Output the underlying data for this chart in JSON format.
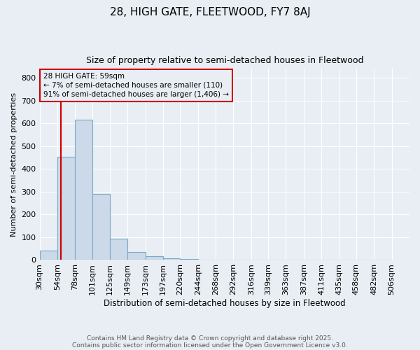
{
  "title": "28, HIGH GATE, FLEETWOOD, FY7 8AJ",
  "subtitle": "Size of property relative to semi-detached houses in Fleetwood",
  "xlabel": "Distribution of semi-detached houses by size in Fleetwood",
  "ylabel": "Number of semi-detached properties",
  "footnote1": "Contains HM Land Registry data © Crown copyright and database right 2025.",
  "footnote2": "Contains public sector information licensed under the Open Government Licence v3.0.",
  "bin_labels": [
    "30sqm",
    "54sqm",
    "78sqm",
    "101sqm",
    "125sqm",
    "149sqm",
    "173sqm",
    "197sqm",
    "220sqm",
    "244sqm",
    "268sqm",
    "292sqm",
    "316sqm",
    "339sqm",
    "363sqm",
    "387sqm",
    "411sqm",
    "435sqm",
    "458sqm",
    "482sqm",
    "506sqm"
  ],
  "bar_heights": [
    40,
    455,
    615,
    290,
    95,
    35,
    17,
    8,
    5,
    0,
    0,
    0,
    0,
    0,
    0,
    0,
    0,
    0,
    0,
    0
  ],
  "bar_color": "#ccd9e8",
  "bar_edge_color": "#7aaac8",
  "ylim": [
    0,
    840
  ],
  "yticks": [
    0,
    100,
    200,
    300,
    400,
    500,
    600,
    700,
    800
  ],
  "property_size": 59,
  "bin_edges": [
    30,
    54,
    78,
    101,
    125,
    149,
    173,
    197,
    220,
    244,
    268,
    292,
    316,
    339,
    363,
    387,
    411,
    435,
    458,
    482,
    506
  ],
  "vline_color": "#cc0000",
  "annotation_line1": "28 HIGH GATE: 59sqm",
  "annotation_line2": "← 7% of semi-detached houses are smaller (110)",
  "annotation_line3": "91% of semi-detached houses are larger (1,406) →",
  "annotation_box_color": "#cc0000",
  "background_color": "#e8eef4",
  "grid_color": "#ffffff"
}
